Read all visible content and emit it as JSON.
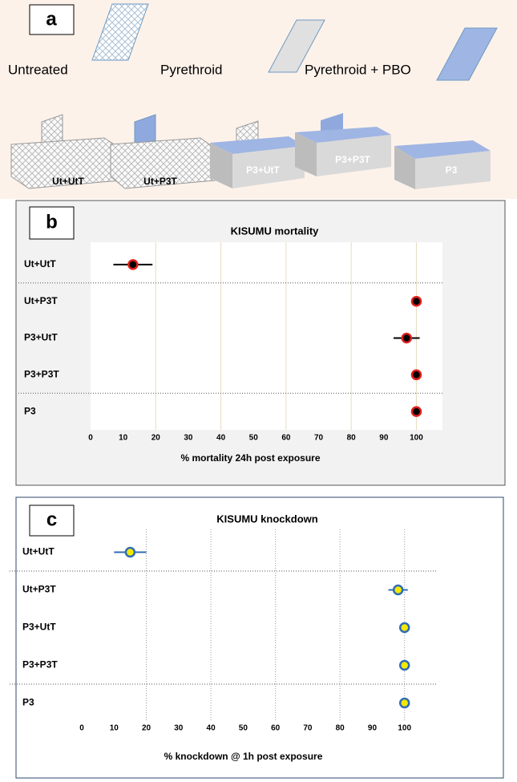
{
  "panel_a": {
    "panel_label": "a",
    "legend": [
      "Untreated",
      "Pyrethroid",
      "Pyrethroid + PBO"
    ],
    "boxes": [
      "Ut+UtT",
      "Ut+P3T",
      "P3+UtT",
      "P3+P3T",
      "P3"
    ]
  },
  "chart_data": [
    {
      "type": "dot",
      "panel_label": "b",
      "title": "KISUMU mortality",
      "x_label": "% mortality 24h post exposure",
      "categories": [
        "Ut+UtT",
        "Ut+P3T",
        "P3+UtT",
        "P3+P3T",
        "P3"
      ],
      "values": [
        13,
        100,
        97,
        100,
        100
      ],
      "errors": [
        6,
        0.5,
        4,
        0.5,
        0.5
      ],
      "color": "#000000",
      "edge_color": "#e0201b",
      "error_color": "#000000",
      "xlim": [
        0,
        108
      ],
      "xticks": [
        0,
        10,
        20,
        30,
        40,
        50,
        60,
        70,
        80,
        90,
        100
      ],
      "grid": [
        20,
        40,
        60,
        80,
        100
      ]
    },
    {
      "type": "dot",
      "panel_label": "c",
      "title": "KISUMU knockdown",
      "x_label": "% knockdown @ 1h post exposure",
      "categories": [
        "Ut+UtT",
        "Ut+P3T",
        "P3+UtT",
        "P3+P3T",
        "P3"
      ],
      "values": [
        15,
        98,
        100,
        100,
        100
      ],
      "errors": [
        5,
        3,
        0,
        0,
        0
      ],
      "color": "#f5e800",
      "edge_color": "#2e6db5",
      "error_color": "#2e6db5",
      "xlim": [
        0,
        110
      ],
      "xticks": [
        0,
        10,
        20,
        30,
        40,
        50,
        60,
        70,
        80,
        90,
        100
      ],
      "grid": [
        20,
        40,
        60,
        80,
        100
      ]
    }
  ]
}
